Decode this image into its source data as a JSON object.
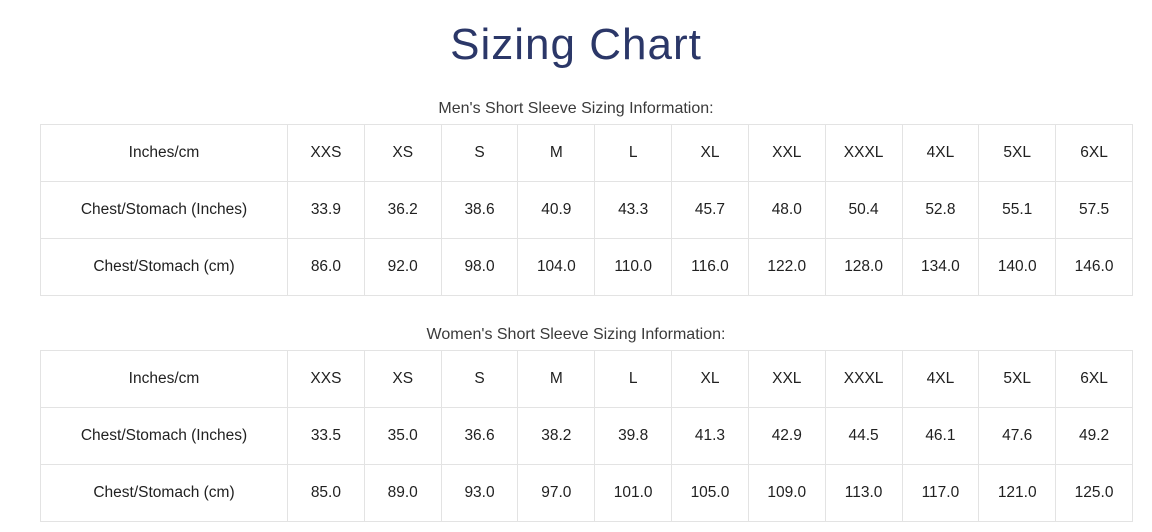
{
  "page": {
    "title": "Sizing Chart"
  },
  "colors": {
    "title_navy": "#2b3768",
    "table_border": "#e3e3e3",
    "table_text": "#212121",
    "subtitle_text": "#3a3a3a",
    "background": "#ffffff"
  },
  "tables": [
    {
      "subtitle": "Men's Short Sleeve Sizing Information:",
      "corner_label": "Inches/cm",
      "sizes": [
        "XXS",
        "XS",
        "S",
        "M",
        "L",
        "XL",
        "XXL",
        "XXXL",
        "4XL",
        "5XL",
        "6XL"
      ],
      "rows": [
        {
          "label": "Chest/Stomach (Inches)",
          "values": [
            "33.9",
            "36.2",
            "38.6",
            "40.9",
            "43.3",
            "45.7",
            "48.0",
            "50.4",
            "52.8",
            "55.1",
            "57.5"
          ]
        },
        {
          "label": "Chest/Stomach (cm)",
          "values": [
            "86.0",
            "92.0",
            "98.0",
            "104.0",
            "110.0",
            "116.0",
            "122.0",
            "128.0",
            "134.0",
            "140.0",
            "146.0"
          ]
        }
      ]
    },
    {
      "subtitle": "Women's Short Sleeve Sizing Information:",
      "corner_label": "Inches/cm",
      "sizes": [
        "XXS",
        "XS",
        "S",
        "M",
        "L",
        "XL",
        "XXL",
        "XXXL",
        "4XL",
        "5XL",
        "6XL"
      ],
      "rows": [
        {
          "label": "Chest/Stomach (Inches)",
          "values": [
            "33.5",
            "35.0",
            "36.6",
            "38.2",
            "39.8",
            "41.3",
            "42.9",
            "44.5",
            "46.1",
            "47.6",
            "49.2"
          ]
        },
        {
          "label": "Chest/Stomach (cm)",
          "values": [
            "85.0",
            "89.0",
            "93.0",
            "97.0",
            "101.0",
            "105.0",
            "109.0",
            "113.0",
            "117.0",
            "121.0",
            "125.0"
          ]
        }
      ]
    }
  ]
}
